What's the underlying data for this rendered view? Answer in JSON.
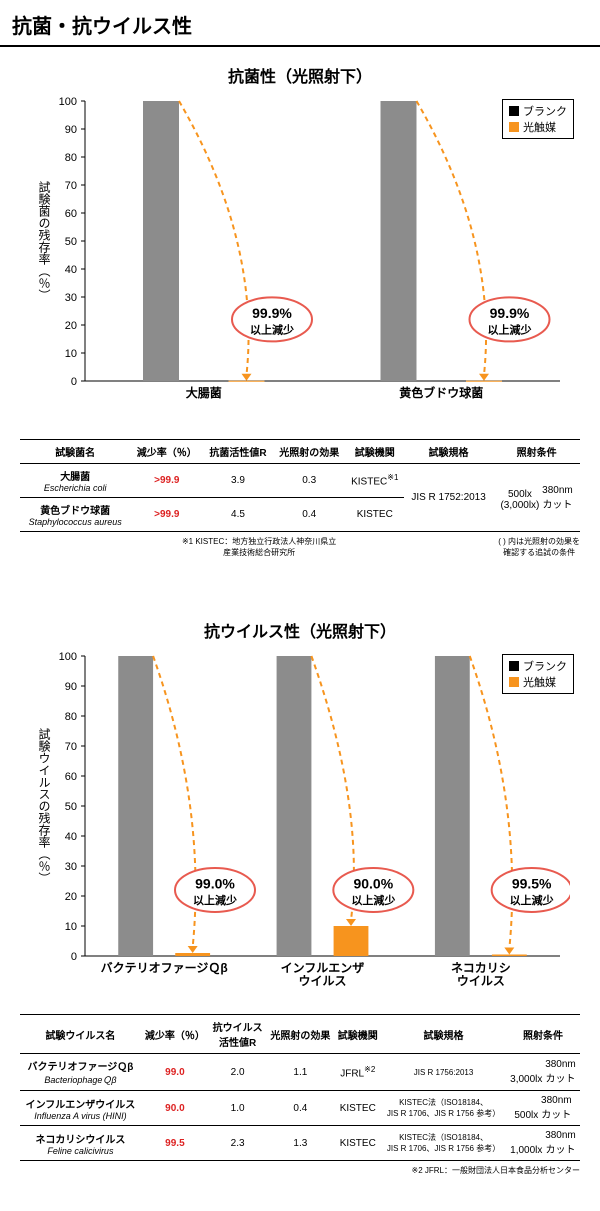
{
  "page_title": "抗菌・抗ウイルス性",
  "colors": {
    "bar_blank": "#8c8c8c",
    "bar_photo": "#f7941e",
    "dash": "#f7941e",
    "callout_stroke": "#e85a4f",
    "axis": "#000000",
    "grid": "#cccccc",
    "red_text": "#d22"
  },
  "legend": {
    "blank": "ブランク",
    "photo": "光触媒"
  },
  "chart1": {
    "title": "抗菌性（光照射下）",
    "ylabel": "試験菌の残存率（％）",
    "ylim": [
      0,
      100
    ],
    "ytick_step": 10,
    "groups": [
      {
        "label": "大腸菌",
        "blank": 100,
        "photo": 0.1,
        "callout": "99.9%\n以上減少"
      },
      {
        "label": "黄色ブドウ球菌",
        "blank": 100,
        "photo": 0.1,
        "callout": "99.9%\n以上減少"
      }
    ]
  },
  "table1": {
    "headers": [
      "試験菌名",
      "減少率（％）",
      "抗菌活性値R",
      "光照射の効果",
      "試験機関",
      "試験規格",
      "照射条件"
    ],
    "rows": [
      {
        "jp": "大腸菌",
        "en": "Escherichia coli",
        "rate": ">99.9",
        "r": "3.9",
        "eff": "0.3",
        "org": "KISTEC",
        "org_sup": "※1",
        "std": "JIS R 1752:2013",
        "cond_l": "500lx\n(3,000lx)",
        "cond_r": "380nm\nカット",
        "rowspan_std": true
      },
      {
        "jp": "黄色ブドウ球菌",
        "en": "Staphylococcus aureus",
        "rate": ">99.9",
        "r": "4.5",
        "eff": "0.4",
        "org": "KISTEC"
      }
    ],
    "foot_left": "※1 KISTEC：地方独立行政法人神奈川県立\n産業技術総合研究所",
    "foot_right": "( ) 内は光照射の効果を\n確認する追試の条件"
  },
  "chart2": {
    "title": "抗ウイルス性（光照射下）",
    "ylabel": "試験ウイルスの残存率（％）",
    "ylim": [
      0,
      100
    ],
    "ytick_step": 10,
    "groups": [
      {
        "label": "バクテリオファージＱβ",
        "blank": 100,
        "photo": 1.0,
        "callout": "99.0%\n以上減少"
      },
      {
        "label": "インフルエンザ\nウイルス",
        "blank": 100,
        "photo": 10.0,
        "callout": "90.0%\n以上減少"
      },
      {
        "label": "ネコカリシ\nウイルス",
        "blank": 100,
        "photo": 0.5,
        "callout": "99.5%\n以上減少"
      }
    ]
  },
  "table2": {
    "headers": [
      "試験ウイルス名",
      "減少率（％）",
      "抗ウイルス\n活性値R",
      "光照射の効果",
      "試験機関",
      "試験規格",
      "照射条件"
    ],
    "rows": [
      {
        "jp": "バクテリオファージＱβ",
        "en": "BacteriophageＱβ",
        "rate": "99.0",
        "r": "2.0",
        "eff": "1.1",
        "org": "JFRL",
        "org_sup": "※2",
        "std": "JIS R 1756:2013",
        "cond_l": "3,000lx",
        "cond_r": "380nm\nカット"
      },
      {
        "jp": "インフルエンザウイルス",
        "en": "Influenza A virus (HINI)",
        "rate": "90.0",
        "r": "1.0",
        "eff": "0.4",
        "org": "KISTEC",
        "std": "KISTEC法（ISO18184、\nJIS R 1706、JIS R 1756 参考）",
        "cond_l": "500lx",
        "cond_r": "380nm\nカット"
      },
      {
        "jp": "ネコカリシウイルス",
        "en": "Feline calicivirus",
        "rate": "99.5",
        "r": "2.3",
        "eff": "1.3",
        "org": "KISTEC",
        "std": "KISTEC法（ISO18184、\nJIS R 1706、JIS R 1756 参考）",
        "cond_l": "1,000lx",
        "cond_r": "380nm\nカット"
      }
    ],
    "foot_left": "",
    "foot_right": "※2 JFRL：一般財団法人日本食品分析センター"
  }
}
